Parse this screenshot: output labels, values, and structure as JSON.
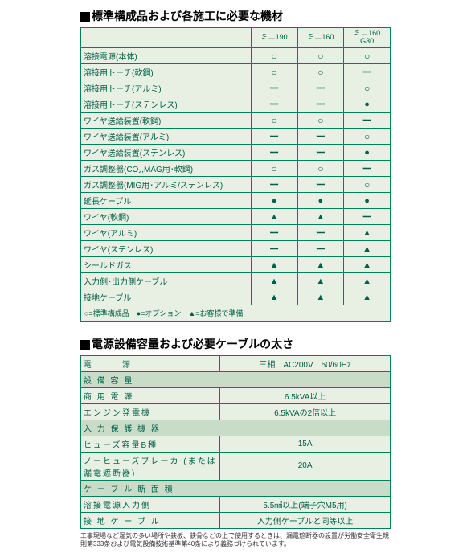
{
  "colors": {
    "border": "#008060",
    "text": "#006048",
    "bg": "#e8f0e4",
    "header_bg": "#c8dcc8"
  },
  "section1": {
    "title": "標準構成品および各施工に必要な機材",
    "columns": [
      "ミニ190",
      "ミニ160",
      "ミニ160 G30"
    ],
    "rows": [
      {
        "label": "溶接電源(本体)",
        "c": [
          "○",
          "○",
          "○"
        ]
      },
      {
        "label": "溶接用トーチ(軟鋼)",
        "c": [
          "○",
          "○",
          "ー"
        ]
      },
      {
        "label": "溶接用トーチ(アルミ)",
        "c": [
          "ー",
          "ー",
          "○"
        ]
      },
      {
        "label": "溶接用トーチ(ステンレス)",
        "c": [
          "ー",
          "ー",
          "●"
        ]
      },
      {
        "label": "ワイヤ送給装置(軟鋼)",
        "c": [
          "○",
          "○",
          "ー"
        ]
      },
      {
        "label": "ワイヤ送給装置(アルミ)",
        "c": [
          "ー",
          "ー",
          "○"
        ]
      },
      {
        "label": "ワイヤ送給装置(ステンレス)",
        "c": [
          "ー",
          "ー",
          "●"
        ]
      },
      {
        "label": "ガス調整器(CO₂,MAG用･軟鋼)",
        "c": [
          "○",
          "○",
          "ー"
        ]
      },
      {
        "label": "ガス調整器(MIG用･アルミ/ステンレス)",
        "c": [
          "ー",
          "ー",
          "○"
        ]
      },
      {
        "label": "延長ケーブル",
        "c": [
          "●",
          "●",
          "●"
        ]
      },
      {
        "label": "ワイヤ(軟鋼)",
        "c": [
          "▲",
          "▲",
          "ー"
        ]
      },
      {
        "label": "ワイヤ(アルミ)",
        "c": [
          "ー",
          "ー",
          "▲"
        ]
      },
      {
        "label": "ワイヤ(ステンレス)",
        "c": [
          "ー",
          "ー",
          "▲"
        ]
      },
      {
        "label": "シールドガス",
        "c": [
          "▲",
          "▲",
          "▲"
        ]
      },
      {
        "label": "入力側･出力側ケーブル",
        "c": [
          "▲",
          "▲",
          "▲"
        ]
      },
      {
        "label": "接地ケーブル",
        "c": [
          "▲",
          "▲",
          "▲"
        ]
      }
    ],
    "legend": "○=標準構成品　●=オプション　▲=お客様で準備"
  },
  "section2": {
    "title": "電源設備容量および必要ケーブルの太さ",
    "rows": [
      {
        "type": "row",
        "label": "電　　　源",
        "val": "三相　AC200V　50/60Hz"
      },
      {
        "type": "header",
        "label": "設 備 容 量"
      },
      {
        "type": "row",
        "label": "商 用 電 源",
        "val": "6.5kVA以上"
      },
      {
        "type": "row",
        "label": "エンジン発電機",
        "val": "6.5kVAの2倍以上"
      },
      {
        "type": "header",
        "label": "入 力 保 護 機 器"
      },
      {
        "type": "row",
        "label": "ヒューズ容量B種",
        "val": "15A"
      },
      {
        "type": "row",
        "label": "ノーヒューズブレーカ (または漏電遮断器)",
        "val": "20A"
      },
      {
        "type": "header",
        "label": "ケ ー ブ ル 断 面 積"
      },
      {
        "type": "row",
        "label": "溶接電源入力側",
        "val": "5.5㎟以上(端子穴M5用)"
      },
      {
        "type": "row",
        "label": "接 地 ケ ー ブ ル",
        "val": "入力側ケーブルと同等以上"
      }
    ],
    "footnote": "工事現場など湿気の多い場所や鉄板、鉄骨などの上で使用するときは、漏電遮断器の設置が労働安全衛生規則第333条および電気設備技術基準第40条により義務づけられています。"
  },
  "symbols": {
    "○": {
      "class": "circle"
    },
    "●": {
      "class": "filled-circle"
    },
    "ー": {
      "class": "dash"
    },
    "▲": {
      "class": "triangle"
    }
  }
}
